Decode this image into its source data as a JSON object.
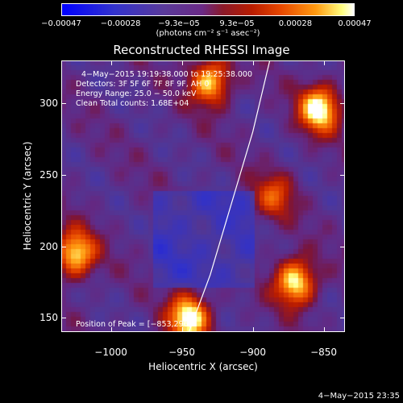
{
  "chart_data": {
    "type": "heatmap",
    "title": "Reconstructed RHESSI Image",
    "xlabel": "Heliocentric X (arcsec)",
    "ylabel": "Heliocentric Y (arcsec)",
    "xlim": [
      -1035,
      -835
    ],
    "ylim": [
      140,
      330
    ],
    "xticks": [
      "−1000",
      "−950",
      "−900",
      "−850"
    ],
    "xtick_values": [
      -1000,
      -950,
      -900,
      -850
    ],
    "yticks": [
      "150",
      "200",
      "250",
      "300"
    ],
    "ytick_values": [
      150,
      200,
      250,
      300
    ],
    "colorbar": {
      "ticks": [
        "−0.00047",
        "−0.00028",
        "−9.3e−05",
        "9.3e−05",
        "0.00028",
        "0.00047"
      ],
      "tick_values": [
        -0.00047,
        -0.00028,
        -9.3e-05,
        9.3e-05,
        0.00028,
        0.00047
      ],
      "range": [
        -0.00047,
        0.00047
      ],
      "units": "(photons cm⁻² s⁻¹ asec⁻²)"
    },
    "annotations": {
      "time": "4−May−2015 19:19:38.000 to 19:25:38.000",
      "detectors": "Detectors: 3F 5F 6F 7F 8F 9F, AH 0",
      "energy": "Energy Range: 25.0 − 50.0 keV",
      "clean": "Clean     Total counts: 1.68E+04",
      "peak": "Position of Peak = [−853,296]"
    },
    "bright_sources": [
      {
        "x": -1025,
        "y": 195,
        "intensity": 0.9
      },
      {
        "x": -945,
        "y": 150,
        "intensity": 1.0
      },
      {
        "x": -930,
        "y": 315,
        "intensity": 0.85
      },
      {
        "x": -853,
        "y": 296,
        "intensity": 1.0
      },
      {
        "x": -870,
        "y": 175,
        "intensity": 0.95
      },
      {
        "x": -885,
        "y": 235,
        "intensity": 0.5
      }
    ],
    "limb_curve": [
      [
        -945,
        140
      ],
      [
        -930,
        180
      ],
      [
        -915,
        230
      ],
      [
        -900,
        280
      ],
      [
        -888,
        330
      ]
    ]
  },
  "footer": {
    "timestamp": "4−May−2015 23:35"
  }
}
